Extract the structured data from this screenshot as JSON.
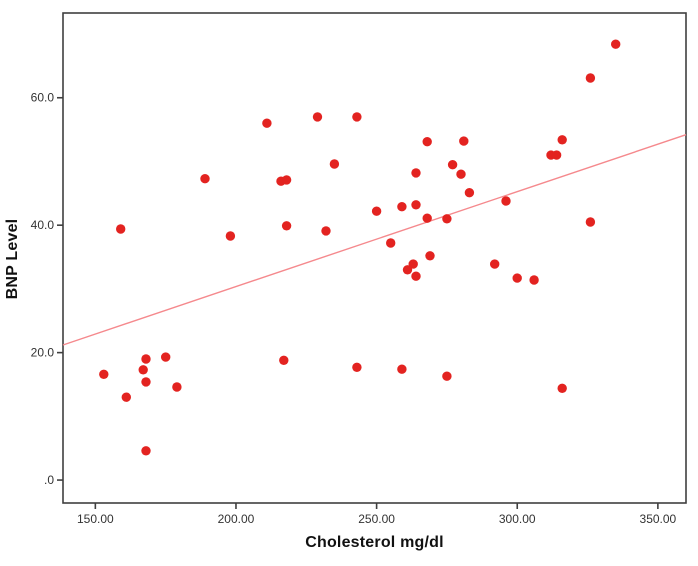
{
  "figure": {
    "background": "#ffffff"
  },
  "colors": {
    "marker": "#e32320",
    "fit_line": "#f5898d",
    "plot_border": "#3f3f3f",
    "tick_mark": "#3f3f3f",
    "tick_label": "#333333",
    "axis_title": "#111111"
  },
  "chart_data": {
    "type": "scatter",
    "title": "",
    "xlabel": "Cholesterol mg/dl",
    "ylabel": "BNP Level",
    "xlim": [
      138.5,
      360
    ],
    "ylim": [
      -3.6,
      73.3
    ],
    "grid": false,
    "legend": false,
    "x_ticks": [
      150,
      200,
      250,
      300,
      350
    ],
    "x_tick_labels": [
      "150.00",
      "200.00",
      "250.00",
      "300.00",
      "350.00"
    ],
    "y_ticks": [
      0,
      20,
      40,
      60
    ],
    "y_tick_labels": [
      ".0",
      "20.0",
      "40.0",
      "60.0"
    ],
    "marker_radius_px": 4.7,
    "fit_line": {
      "x1": 138.5,
      "y1": 21.2,
      "x2": 360,
      "y2": 54.2
    },
    "points": [
      [
        211,
        56.0
      ],
      [
        229,
        57.0
      ],
      [
        243,
        57.0
      ],
      [
        235,
        49.6
      ],
      [
        189,
        47.3
      ],
      [
        216,
        46.9
      ],
      [
        218,
        47.1
      ],
      [
        250,
        42.2
      ],
      [
        159,
        39.4
      ],
      [
        198,
        38.3
      ],
      [
        218,
        39.9
      ],
      [
        232,
        39.1
      ],
      [
        335,
        68.4
      ],
      [
        326,
        63.1
      ],
      [
        268,
        53.1
      ],
      [
        281,
        53.2
      ],
      [
        316,
        53.4
      ],
      [
        312,
        51.0
      ],
      [
        314,
        51.0
      ],
      [
        277,
        49.5
      ],
      [
        280,
        48.0
      ],
      [
        264,
        48.2
      ],
      [
        283,
        45.1
      ],
      [
        296,
        43.8
      ],
      [
        259,
        42.9
      ],
      [
        264,
        43.2
      ],
      [
        268,
        41.1
      ],
      [
        275,
        41.0
      ],
      [
        326,
        40.5
      ],
      [
        255,
        37.2
      ],
      [
        269,
        35.2
      ],
      [
        263,
        33.9
      ],
      [
        261,
        33.0
      ],
      [
        264,
        32.0
      ],
      [
        292,
        33.9
      ],
      [
        300,
        31.7
      ],
      [
        306,
        31.4
      ],
      [
        153,
        16.6
      ],
      [
        168,
        19.0
      ],
      [
        175,
        19.3
      ],
      [
        167,
        17.3
      ],
      [
        168,
        15.4
      ],
      [
        161,
        13.0
      ],
      [
        179,
        14.6
      ],
      [
        217,
        18.8
      ],
      [
        243,
        17.7
      ],
      [
        168,
        4.6
      ],
      [
        259,
        17.4
      ],
      [
        275,
        16.3
      ],
      [
        316,
        14.4
      ]
    ]
  }
}
